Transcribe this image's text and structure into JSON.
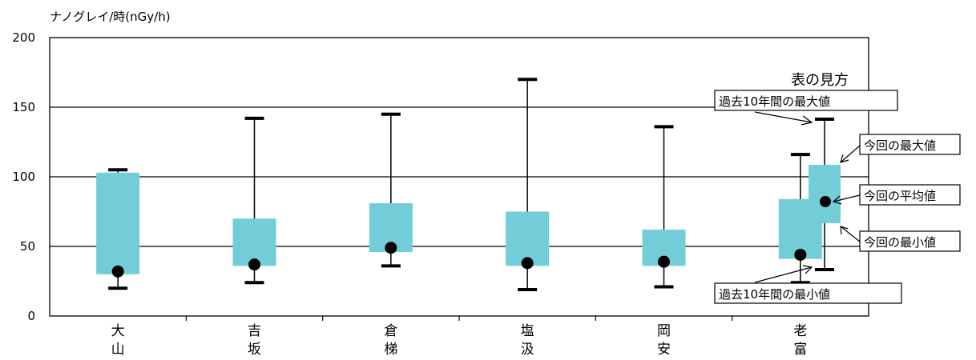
{
  "chart_data": {
    "type": "box",
    "unit_label": "ナノグレイ/時(nGy/h)",
    "ylim": [
      0,
      200
    ],
    "yticks": [
      0,
      50,
      100,
      150,
      200
    ],
    "grid_lines": [
      50,
      100,
      150
    ],
    "box_color": "#72cdd8",
    "categories": [
      {
        "label_line1": "大",
        "label_line2": "山",
        "past_max": 105,
        "past_min": 20,
        "current_max": 103,
        "current_min": 30,
        "current_avg": 32
      },
      {
        "label_line1": "吉",
        "label_line2": "坂",
        "past_max": 142,
        "past_min": 24,
        "current_max": 70,
        "current_min": 36,
        "current_avg": 37
      },
      {
        "label_line1": "倉",
        "label_line2": "梯",
        "past_max": 145,
        "past_min": 36,
        "current_max": 81,
        "current_min": 46,
        "current_avg": 49
      },
      {
        "label_line1": "塩",
        "label_line2": "汲",
        "past_max": 170,
        "past_min": 19,
        "current_max": 75,
        "current_min": 36,
        "current_avg": 38
      },
      {
        "label_line1": "岡",
        "label_line2": "安",
        "past_max": 136,
        "past_min": 21,
        "current_max": 62,
        "current_min": 36,
        "current_avg": 39
      },
      {
        "label_line1": "老",
        "label_line2": "富",
        "past_max": 116,
        "past_min": 24,
        "current_max": 84,
        "current_min": 41,
        "current_avg": 44
      }
    ]
  },
  "legend": {
    "title": "表の見方",
    "past_max": "過去10年間の最大値",
    "current_max": "今回の最大値",
    "current_avg": "今回の平均値",
    "current_min": "今回の最小値",
    "past_min": "過去10年間の最小値"
  }
}
